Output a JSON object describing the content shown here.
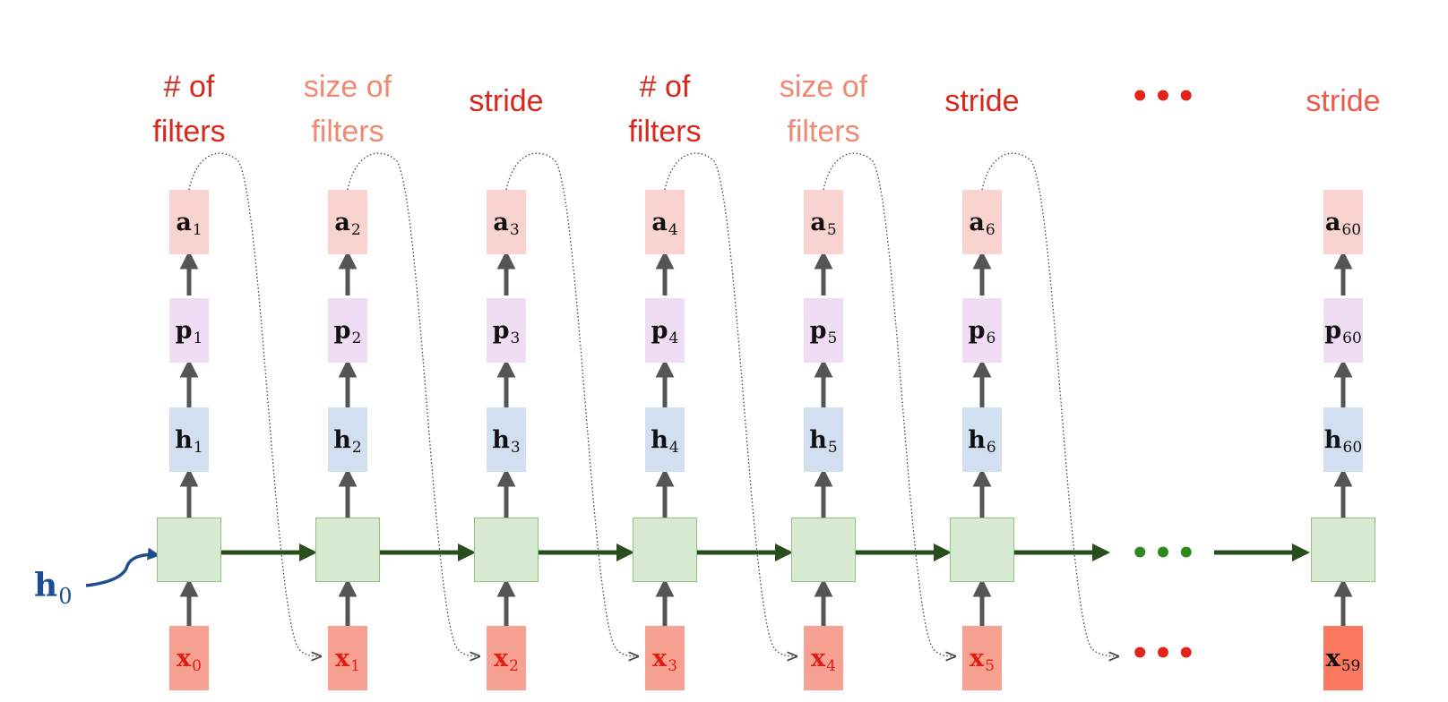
{
  "headers": [
    "# of\nfilters",
    "size of\nfilters",
    "stride",
    "# of\nfilters",
    "size of\nfilters",
    "stride",
    "stride"
  ],
  "ellipsis": "•••",
  "h0": {
    "base": "h",
    "sub": "0"
  },
  "columns": [
    {
      "a": "a",
      "a_sub": "1",
      "p": "p",
      "p_sub": "1",
      "h": "h",
      "h_sub": "1",
      "x": "x",
      "x_sub": "0"
    },
    {
      "a": "a",
      "a_sub": "2",
      "p": "p",
      "p_sub": "2",
      "h": "h",
      "h_sub": "2",
      "x": "x",
      "x_sub": "1"
    },
    {
      "a": "a",
      "a_sub": "3",
      "p": "p",
      "p_sub": "3",
      "h": "h",
      "h_sub": "3",
      "x": "x",
      "x_sub": "2"
    },
    {
      "a": "a",
      "a_sub": "4",
      "p": "p",
      "p_sub": "4",
      "h": "h",
      "h_sub": "4",
      "x": "x",
      "x_sub": "3"
    },
    {
      "a": "a",
      "a_sub": "5",
      "p": "p",
      "p_sub": "5",
      "h": "h",
      "h_sub": "5",
      "x": "x",
      "x_sub": "4"
    },
    {
      "a": "a",
      "a_sub": "6",
      "p": "p",
      "p_sub": "6",
      "h": "h",
      "h_sub": "6",
      "x": "x",
      "x_sub": "5"
    },
    {
      "a": "a",
      "a_sub": "60",
      "p": "p",
      "p_sub": "60",
      "h": "h",
      "h_sub": "60",
      "x": "x",
      "x_sub": "59"
    }
  ],
  "colors": {
    "header_dark": "#d6281c",
    "header_light": "#ee8a72",
    "action_box": "#f9d3cf",
    "prob_box": "#f0dcf4",
    "hidden_box": "#d2dff1",
    "input_box": "#f7a193",
    "cell": "#d9ead2",
    "recurrent_arrow": "#284e1c",
    "h0": "#1d4e92"
  }
}
